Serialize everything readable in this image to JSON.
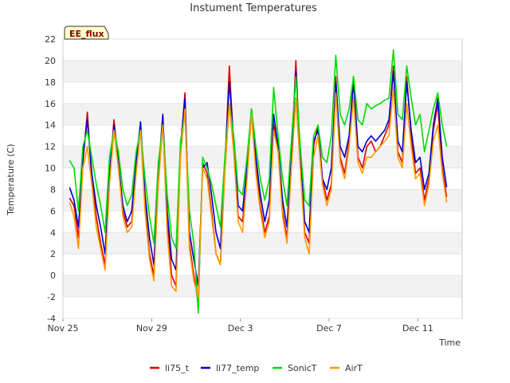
{
  "chart_data": {
    "type": "line",
    "title": "Instument Temperatures",
    "xlabel": "Time",
    "ylabel": "Temperature (C)",
    "badge": "EE_flux",
    "xlim": [
      0,
      18
    ],
    "ylim": [
      -4,
      22
    ],
    "x_ticks": [
      {
        "x": 0,
        "label": "Nov 25"
      },
      {
        "x": 4,
        "label": "Nov 29"
      },
      {
        "x": 8,
        "label": "Dec 3"
      },
      {
        "x": 12,
        "label": "Dec 7"
      },
      {
        "x": 16,
        "label": "Dec 11"
      }
    ],
    "y_ticks": [
      -4,
      -2,
      0,
      2,
      4,
      6,
      8,
      10,
      12,
      14,
      16,
      18,
      20,
      22
    ],
    "banded_background": true,
    "legend_position": "bottom",
    "x": [
      0.3,
      0.5,
      0.7,
      0.9,
      1.1,
      1.3,
      1.5,
      1.7,
      1.9,
      2.1,
      2.3,
      2.5,
      2.7,
      2.9,
      3.1,
      3.3,
      3.5,
      3.7,
      3.9,
      4.1,
      4.3,
      4.5,
      4.7,
      4.9,
      5.1,
      5.3,
      5.5,
      5.7,
      5.9,
      6.1,
      6.3,
      6.5,
      6.7,
      6.9,
      7.1,
      7.3,
      7.5,
      7.7,
      7.9,
      8.1,
      8.3,
      8.5,
      8.7,
      8.9,
      9.1,
      9.3,
      9.5,
      9.7,
      9.9,
      10.1,
      10.3,
      10.5,
      10.7,
      10.9,
      11.1,
      11.3,
      11.5,
      11.7,
      11.9,
      12.1,
      12.3,
      12.5,
      12.7,
      12.9,
      13.1,
      13.3,
      13.5,
      13.7,
      13.9,
      14.1,
      14.3,
      14.5,
      14.7,
      14.9,
      15.1,
      15.3,
      15.5,
      15.7,
      15.9,
      16.1,
      16.3,
      16.5,
      16.7,
      16.9,
      17.1,
      17.3
    ],
    "series": [
      {
        "name": "li75_t",
        "color": "#dd0000",
        "values": [
          7.2,
          6.5,
          3.5,
          10.5,
          15.2,
          9.0,
          5.5,
          3.0,
          1.0,
          9.0,
          14.5,
          10.5,
          6.0,
          4.5,
          5.0,
          10.0,
          14.0,
          6.5,
          2.0,
          0.0,
          9.0,
          14.8,
          5.0,
          0.0,
          -1.0,
          11.5,
          17.0,
          3.0,
          0.0,
          -2.5,
          10.5,
          9.5,
          6.0,
          2.0,
          1.0,
          10.0,
          19.5,
          12.0,
          5.5,
          5.0,
          9.5,
          15.5,
          10.0,
          6.5,
          4.0,
          5.5,
          14.0,
          12.0,
          6.0,
          3.5,
          10.5,
          20.0,
          10.5,
          4.0,
          3.0,
          12.0,
          14.0,
          9.0,
          7.0,
          8.5,
          18.5,
          11.0,
          9.5,
          12.5,
          18.5,
          11.0,
          10.0,
          12.0,
          12.5,
          11.5,
          12.0,
          13.0,
          14.0,
          19.5,
          11.5,
          10.5,
          18.5,
          13.0,
          9.5,
          10.0,
          7.0,
          9.0,
          13.5,
          16.0,
          10.0,
          7.3
        ]
      },
      {
        "name": "li77_temp",
        "color": "#0000cc",
        "values": [
          8.2,
          7.0,
          4.5,
          11.0,
          14.5,
          9.5,
          6.5,
          4.5,
          2.0,
          9.5,
          14.0,
          10.5,
          6.5,
          5.0,
          6.0,
          10.5,
          14.3,
          7.5,
          3.5,
          1.0,
          9.5,
          15.0,
          6.0,
          1.5,
          0.5,
          12.0,
          16.5,
          4.0,
          1.5,
          -1.0,
          10.0,
          10.5,
          7.5,
          4.0,
          2.5,
          10.5,
          18.0,
          12.5,
          6.5,
          6.0,
          10.0,
          15.5,
          11.0,
          7.5,
          5.0,
          7.0,
          15.0,
          12.0,
          7.0,
          4.5,
          11.0,
          19.0,
          11.0,
          5.0,
          4.0,
          12.5,
          13.5,
          9.0,
          8.0,
          10.0,
          18.0,
          12.0,
          11.0,
          13.0,
          18.0,
          12.0,
          11.5,
          12.5,
          13.0,
          12.5,
          13.0,
          13.5,
          14.5,
          19.0,
          12.5,
          11.5,
          18.0,
          13.5,
          10.5,
          11.0,
          8.0,
          9.5,
          14.0,
          16.5,
          11.0,
          8.2
        ]
      },
      {
        "name": "SonicT",
        "color": "#00dd00",
        "values": [
          10.7,
          10.0,
          6.0,
          12.0,
          13.5,
          11.0,
          8.5,
          6.5,
          4.0,
          11.0,
          13.5,
          11.5,
          8.0,
          6.5,
          7.5,
          11.5,
          13.5,
          9.0,
          5.5,
          3.0,
          10.5,
          14.0,
          7.5,
          3.5,
          2.5,
          12.5,
          15.0,
          6.0,
          3.0,
          -3.5,
          11.0,
          10.0,
          8.5,
          6.5,
          4.5,
          11.0,
          16.0,
          13.0,
          8.0,
          7.5,
          11.0,
          15.5,
          12.0,
          9.0,
          7.0,
          9.0,
          17.5,
          13.0,
          9.0,
          6.5,
          12.5,
          18.5,
          12.0,
          7.0,
          6.5,
          13.0,
          14.0,
          11.0,
          10.5,
          13.0,
          20.5,
          15.0,
          14.0,
          15.5,
          18.5,
          14.5,
          14.0,
          16.0,
          15.5,
          15.8,
          16.0,
          16.3,
          16.5,
          21.0,
          15.0,
          14.5,
          19.5,
          16.5,
          14.0,
          15.0,
          11.5,
          13.5,
          15.5,
          17.0,
          14.0,
          12.0
        ]
      },
      {
        "name": "AirT",
        "color": "#ff9900",
        "values": [
          6.8,
          5.5,
          2.5,
          10.0,
          12.0,
          8.5,
          4.5,
          2.5,
          0.5,
          8.5,
          13.5,
          10.0,
          5.5,
          4.0,
          4.5,
          9.5,
          13.5,
          6.0,
          1.5,
          -0.5,
          8.5,
          14.0,
          4.0,
          -1.0,
          -1.5,
          11.0,
          15.5,
          2.5,
          -0.5,
          -2.0,
          10.0,
          9.0,
          5.5,
          2.0,
          1.0,
          9.5,
          16.0,
          11.5,
          5.0,
          4.0,
          9.0,
          15.0,
          9.5,
          6.0,
          3.5,
          5.0,
          13.5,
          11.5,
          5.5,
          3.0,
          10.0,
          16.5,
          10.0,
          3.5,
          2.0,
          11.0,
          13.0,
          8.5,
          6.5,
          8.0,
          17.0,
          10.5,
          9.0,
          12.0,
          16.5,
          10.5,
          9.5,
          11.0,
          11.0,
          11.5,
          12.0,
          12.5,
          13.0,
          17.5,
          11.0,
          10.0,
          16.0,
          12.0,
          9.0,
          9.5,
          6.5,
          8.5,
          12.5,
          14.0,
          9.5,
          6.8
        ]
      }
    ]
  }
}
